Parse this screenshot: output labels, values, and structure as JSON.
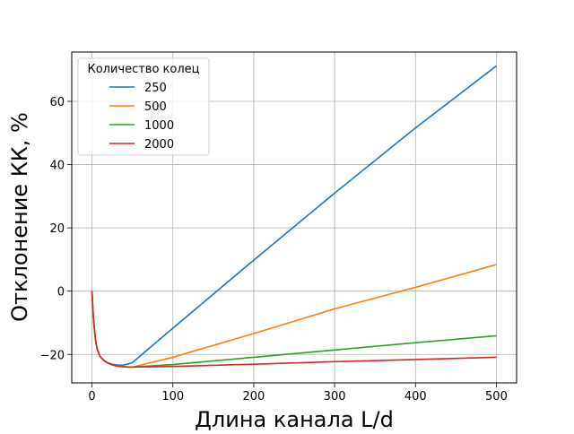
{
  "chart_data": {
    "type": "line",
    "title": "",
    "xlabel": "Длина канала L/d",
    "ylabel": "Отклонение КК, %",
    "xlim": [
      -25,
      525
    ],
    "ylim": [
      -29,
      75.6
    ],
    "xticks": [
      0,
      100,
      200,
      300,
      400,
      500
    ],
    "yticks": [
      -20,
      0,
      20,
      40,
      60
    ],
    "xtick_labels": [
      "0",
      "100",
      "200",
      "300",
      "400",
      "500"
    ],
    "ytick_labels": [
      "−20",
      "0",
      "20",
      "40",
      "60"
    ],
    "grid": true,
    "legend": {
      "title": "Количество колец",
      "placement": "top-left"
    },
    "series": [
      {
        "name": "250",
        "color": "#1f77b4",
        "x": [
          0,
          1,
          2,
          3,
          4,
          5,
          7,
          10,
          15,
          20,
          25,
          30,
          35,
          40,
          45,
          50,
          100,
          200,
          300,
          400,
          500
        ],
        "y": [
          0,
          -5,
          -9,
          -12,
          -14.5,
          -16.5,
          -18.8,
          -20.6,
          -22.0,
          -22.7,
          -23.1,
          -23.3,
          -23.4,
          -23.3,
          -23.0,
          -22.6,
          -11.7,
          9.8,
          31.0,
          51.6,
          71.2
        ]
      },
      {
        "name": "500",
        "color": "#ff7f0e",
        "x": [
          0,
          1,
          2,
          3,
          4,
          5,
          7,
          10,
          15,
          20,
          25,
          30,
          35,
          40,
          45,
          50,
          100,
          200,
          300,
          400,
          500
        ],
        "y": [
          0,
          -5,
          -9,
          -12,
          -14.5,
          -16.5,
          -18.8,
          -20.6,
          -22.0,
          -22.8,
          -23.3,
          -23.6,
          -23.8,
          -23.9,
          -24.0,
          -24.0,
          -20.9,
          -13.4,
          -5.6,
          1.2,
          8.4
        ]
      },
      {
        "name": "1000",
        "color": "#2ca02c",
        "x": [
          0,
          1,
          2,
          3,
          4,
          5,
          7,
          10,
          15,
          20,
          25,
          30,
          35,
          40,
          45,
          50,
          100,
          200,
          300,
          400,
          500
        ],
        "y": [
          0,
          -5,
          -9,
          -12,
          -14.5,
          -16.5,
          -18.8,
          -20.6,
          -22.0,
          -22.8,
          -23.3,
          -23.6,
          -23.8,
          -23.9,
          -24.0,
          -24.0,
          -23.2,
          -20.9,
          -18.6,
          -16.3,
          -14.1
        ]
      },
      {
        "name": "2000",
        "color": "#d62728",
        "x": [
          0,
          1,
          2,
          3,
          4,
          5,
          7,
          10,
          15,
          20,
          25,
          30,
          35,
          40,
          45,
          50,
          100,
          200,
          300,
          400,
          500
        ],
        "y": [
          0,
          -5,
          -9,
          -12,
          -14.5,
          -16.5,
          -18.8,
          -20.6,
          -22.0,
          -22.8,
          -23.3,
          -23.6,
          -23.8,
          -23.9,
          -24.0,
          -24.0,
          -23.8,
          -23.1,
          -22.3,
          -21.6,
          -20.9
        ]
      }
    ]
  }
}
